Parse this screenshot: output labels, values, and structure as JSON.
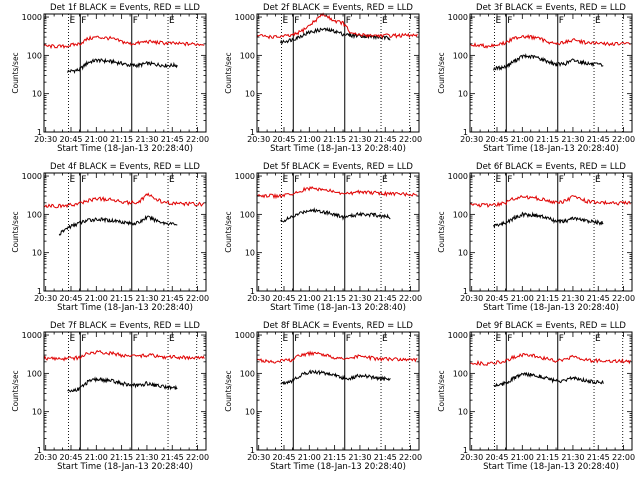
{
  "page": {
    "title": ""
  },
  "common": {
    "ylabel": "Counts/sec",
    "xlabel": "Start Time (18-Jan-13 20:28:40)",
    "xticks": [
      "20:30",
      "20:45",
      "21:00",
      "21:15",
      "21:30",
      "21:45",
      "22:00"
    ],
    "xtick_values_min": [
      30,
      45,
      60,
      75,
      90,
      105,
      120
    ],
    "yticks": [
      "1",
      "10",
      "100",
      "1000"
    ],
    "ytick_values": [
      1,
      10,
      100,
      1000
    ],
    "xlim_min": [
      29,
      125
    ],
    "ylim": [
      1,
      1200
    ],
    "yscale": "log",
    "colors": {
      "events": "#000000",
      "lld": "#e00000",
      "axes": "#000000",
      "background": "#ffffff"
    },
    "event_markers": [
      {
        "label": "E",
        "x_min": 43.5,
        "style": "dotted"
      },
      {
        "label": "F",
        "x_min": 50.5,
        "style": "solid"
      },
      {
        "label": "F",
        "x_min": 81.0,
        "style": "solid"
      },
      {
        "label": "E",
        "x_min": 102.5,
        "style": "dotted"
      },
      {
        "label": "",
        "x_min": 119.5,
        "style": "dotted"
      }
    ]
  },
  "chart_data": [
    {
      "type": "line",
      "title": "Det 1f  BLACK = Events, RED = LLD",
      "yscale": "log",
      "series": [
        {
          "name": "Events",
          "color": "#000000",
          "x_min": [
            43,
            50,
            55,
            60,
            68,
            75,
            80,
            85,
            90,
            100,
            108
          ],
          "values": [
            38,
            42,
            65,
            75,
            70,
            62,
            55,
            55,
            62,
            55,
            55
          ]
        },
        {
          "name": "LLD",
          "color": "#e00000",
          "x_min": [
            29,
            40,
            50,
            55,
            60,
            68,
            75,
            80,
            85,
            90,
            100,
            110,
            124
          ],
          "values": [
            175,
            170,
            200,
            270,
            300,
            280,
            230,
            200,
            210,
            230,
            210,
            200,
            195
          ]
        }
      ]
    },
    {
      "type": "line",
      "title": "Det 2f  BLACK = Events, RED = LLD",
      "yscale": "log",
      "series": [
        {
          "name": "Events",
          "color": "#000000",
          "x_min": [
            43,
            50,
            55,
            60,
            68,
            75,
            80,
            85,
            90,
            100,
            108
          ],
          "values": [
            220,
            260,
            320,
            400,
            480,
            430,
            360,
            330,
            330,
            300,
            280
          ]
        },
        {
          "name": "LLD",
          "color": "#e00000",
          "x_min": [
            29,
            40,
            50,
            55,
            60,
            68,
            75,
            80,
            85,
            90,
            100,
            110,
            124
          ],
          "values": [
            330,
            300,
            330,
            420,
            600,
            1200,
            800,
            700,
            360,
            340,
            330,
            330,
            330
          ]
        }
      ]
    },
    {
      "type": "line",
      "title": "Det 3f  BLACK = Events, RED = LLD",
      "yscale": "log",
      "series": [
        {
          "name": "Events",
          "color": "#000000",
          "x_min": [
            43,
            50,
            55,
            60,
            68,
            75,
            80,
            85,
            90,
            100,
            108
          ],
          "values": [
            45,
            50,
            70,
            95,
            90,
            70,
            58,
            60,
            75,
            60,
            55
          ]
        },
        {
          "name": "LLD",
          "color": "#e00000",
          "x_min": [
            29,
            40,
            50,
            55,
            60,
            68,
            75,
            80,
            85,
            90,
            100,
            110,
            124
          ],
          "values": [
            190,
            175,
            210,
            280,
            320,
            290,
            230,
            200,
            220,
            250,
            210,
            200,
            200
          ]
        }
      ]
    },
    {
      "type": "line",
      "title": "Det 4f  BLACK = Events, RED = LLD",
      "yscale": "log",
      "series": [
        {
          "name": "Events",
          "color": "#000000",
          "x_min": [
            38,
            43,
            50,
            55,
            60,
            68,
            75,
            80,
            85,
            90,
            100,
            108
          ],
          "values": [
            30,
            45,
            60,
            70,
            75,
            70,
            65,
            58,
            60,
            85,
            60,
            55
          ]
        },
        {
          "name": "LLD",
          "color": "#e00000",
          "x_min": [
            29,
            40,
            50,
            55,
            60,
            68,
            75,
            80,
            85,
            90,
            100,
            110,
            124
          ],
          "values": [
            170,
            165,
            190,
            230,
            260,
            240,
            220,
            200,
            210,
            330,
            200,
            190,
            185
          ]
        }
      ]
    },
    {
      "type": "line",
      "title": "Det 5f  BLACK = Events, RED = LLD",
      "yscale": "log",
      "series": [
        {
          "name": "Events",
          "color": "#000000",
          "x_min": [
            43,
            50,
            55,
            60,
            68,
            75,
            80,
            85,
            90,
            100,
            108
          ],
          "values": [
            65,
            85,
            110,
            130,
            120,
            100,
            85,
            90,
            105,
            95,
            85
          ]
        },
        {
          "name": "LLD",
          "color": "#e00000",
          "x_min": [
            29,
            40,
            50,
            55,
            60,
            68,
            75,
            80,
            85,
            90,
            100,
            110,
            124
          ],
          "values": [
            320,
            300,
            330,
            420,
            480,
            450,
            380,
            340,
            360,
            400,
            360,
            340,
            340
          ]
        }
      ]
    },
    {
      "type": "line",
      "title": "Det 6f  BLACK = Events, RED = LLD",
      "yscale": "log",
      "series": [
        {
          "name": "Events",
          "color": "#000000",
          "x_min": [
            43,
            50,
            55,
            60,
            68,
            75,
            80,
            85,
            90,
            100,
            108
          ],
          "values": [
            50,
            60,
            80,
            100,
            95,
            80,
            65,
            65,
            80,
            65,
            60
          ]
        },
        {
          "name": "LLD",
          "color": "#e00000",
          "x_min": [
            29,
            40,
            50,
            55,
            60,
            68,
            75,
            80,
            85,
            90,
            100,
            110,
            124
          ],
          "values": [
            180,
            170,
            200,
            260,
            290,
            270,
            230,
            200,
            220,
            290,
            210,
            200,
            195
          ]
        }
      ]
    },
    {
      "type": "line",
      "title": "Det 7f  BLACK = Events, RED = LLD",
      "yscale": "log",
      "series": [
        {
          "name": "Events",
          "color": "#000000",
          "x_min": [
            43,
            50,
            55,
            60,
            68,
            75,
            80,
            85,
            90,
            100,
            108
          ],
          "values": [
            33,
            40,
            60,
            70,
            65,
            55,
            50,
            48,
            55,
            45,
            42
          ]
        },
        {
          "name": "LLD",
          "color": "#e00000",
          "x_min": [
            29,
            40,
            50,
            55,
            60,
            68,
            75,
            80,
            85,
            90,
            100,
            110,
            124
          ],
          "values": [
            250,
            240,
            260,
            330,
            360,
            340,
            300,
            270,
            280,
            300,
            270,
            260,
            255
          ]
        }
      ]
    },
    {
      "type": "line",
      "title": "Det 8f  BLACK = Events, RED = LLD",
      "yscale": "log",
      "series": [
        {
          "name": "Events",
          "color": "#000000",
          "x_min": [
            43,
            50,
            55,
            60,
            68,
            75,
            80,
            85,
            90,
            100,
            108
          ],
          "values": [
            55,
            65,
            90,
            110,
            105,
            90,
            75,
            75,
            90,
            75,
            70
          ]
        },
        {
          "name": "LLD",
          "color": "#e00000",
          "x_min": [
            29,
            40,
            50,
            55,
            60,
            68,
            75,
            80,
            85,
            90,
            100,
            110,
            124
          ],
          "values": [
            220,
            200,
            230,
            300,
            330,
            310,
            260,
            240,
            250,
            280,
            240,
            230,
            225
          ]
        }
      ]
    },
    {
      "type": "line",
      "title": "Det 9f  BLACK = Events, RED = LLD",
      "yscale": "log",
      "series": [
        {
          "name": "Events",
          "color": "#000000",
          "x_min": [
            43,
            50,
            55,
            60,
            68,
            75,
            80,
            85,
            90,
            100,
            108
          ],
          "values": [
            48,
            55,
            75,
            95,
            90,
            75,
            62,
            62,
            78,
            62,
            58
          ]
        },
        {
          "name": "LLD",
          "color": "#e00000",
          "x_min": [
            29,
            40,
            50,
            55,
            60,
            68,
            75,
            80,
            85,
            90,
            100,
            110,
            124
          ],
          "values": [
            190,
            180,
            210,
            270,
            300,
            280,
            240,
            210,
            230,
            280,
            220,
            210,
            205
          ]
        }
      ]
    }
  ]
}
